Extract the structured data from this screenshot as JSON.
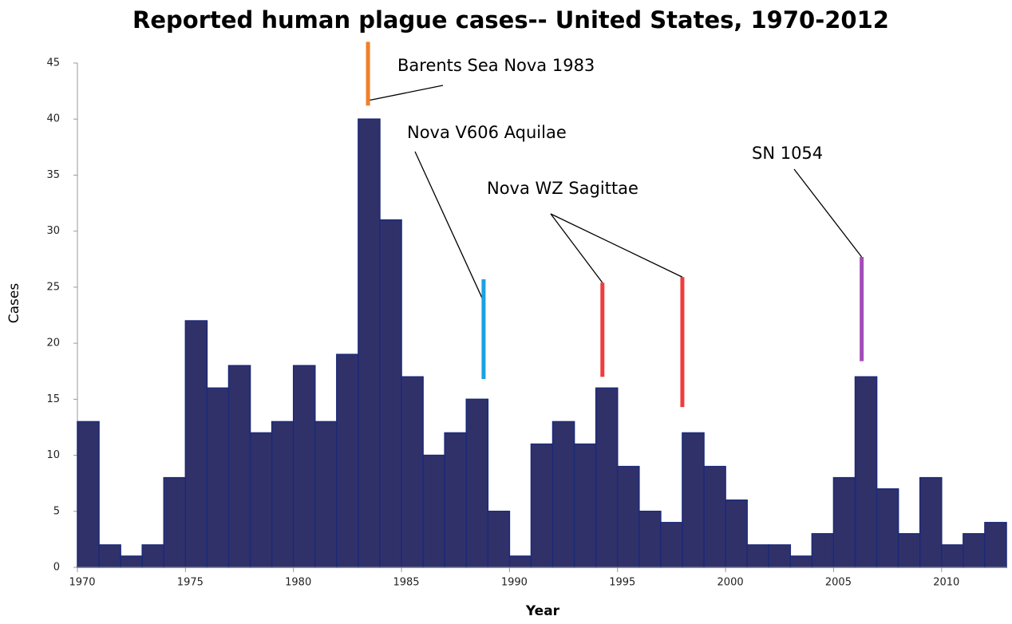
{
  "chart_data": {
    "type": "histogram",
    "title": "Reported human plague cases-- United States, 1970-2012",
    "x_label": "Year",
    "y_label": "Cases",
    "bins": [
      1970,
      1971,
      1972,
      1973,
      1974,
      1975,
      1976,
      1977,
      1978,
      1979,
      1980,
      1981,
      1982,
      1983,
      1984,
      1985,
      1986,
      1987,
      1988,
      1989,
      1990,
      1991,
      1992,
      1993,
      1994,
      1995,
      1996,
      1997,
      1998,
      1999,
      2000,
      2001,
      2002,
      2003,
      2004,
      2005,
      2006,
      2007,
      2008,
      2009,
      2010,
      2011,
      2012,
      2013
    ],
    "values": [
      13,
      2,
      1,
      2,
      8,
      22,
      16,
      18,
      12,
      13,
      18,
      13,
      19,
      40,
      31,
      17,
      10,
      12,
      15,
      5,
      1,
      11,
      13,
      11,
      16,
      9,
      5,
      4,
      12,
      9,
      6,
      2,
      2,
      1,
      3,
      8,
      17,
      7,
      3,
      8,
      2,
      3,
      4
    ],
    "color": "#31316a",
    "xlim": [
      1970,
      2013
    ],
    "xticks": [
      1970,
      1975,
      1980,
      1985,
      1990,
      1995,
      2000,
      2005,
      2010
    ],
    "ylim": [
      0,
      45
    ],
    "yticks": [
      0,
      5,
      10,
      15,
      20,
      25,
      30,
      35,
      40,
      45
    ],
    "annotations": [
      {
        "label": "Barents Sea Nova 1983",
        "color": "#f07f2a",
        "lines": [
          {
            "x": 1983.45,
            "y": [
              41.2,
              46.9
            ]
          }
        ]
      },
      {
        "label": "Nova V606 Aquilae",
        "color": "#1ba1e2",
        "lines": [
          {
            "x": 1988.8,
            "y": [
              16.8,
              25.7
            ]
          }
        ]
      },
      {
        "label": "Nova WZ Sagittae",
        "color": "#f03c3c",
        "lines": [
          {
            "x": 1994.3,
            "y": [
              17,
              25.4
            ]
          },
          {
            "x": 1998.0,
            "y": [
              14.3,
              25.9
            ]
          }
        ]
      },
      {
        "label": "SN 1054",
        "color": "#a24db8",
        "lines": [
          {
            "x": 2006.3,
            "y": [
              18.4,
              27.7
            ]
          }
        ]
      }
    ]
  }
}
